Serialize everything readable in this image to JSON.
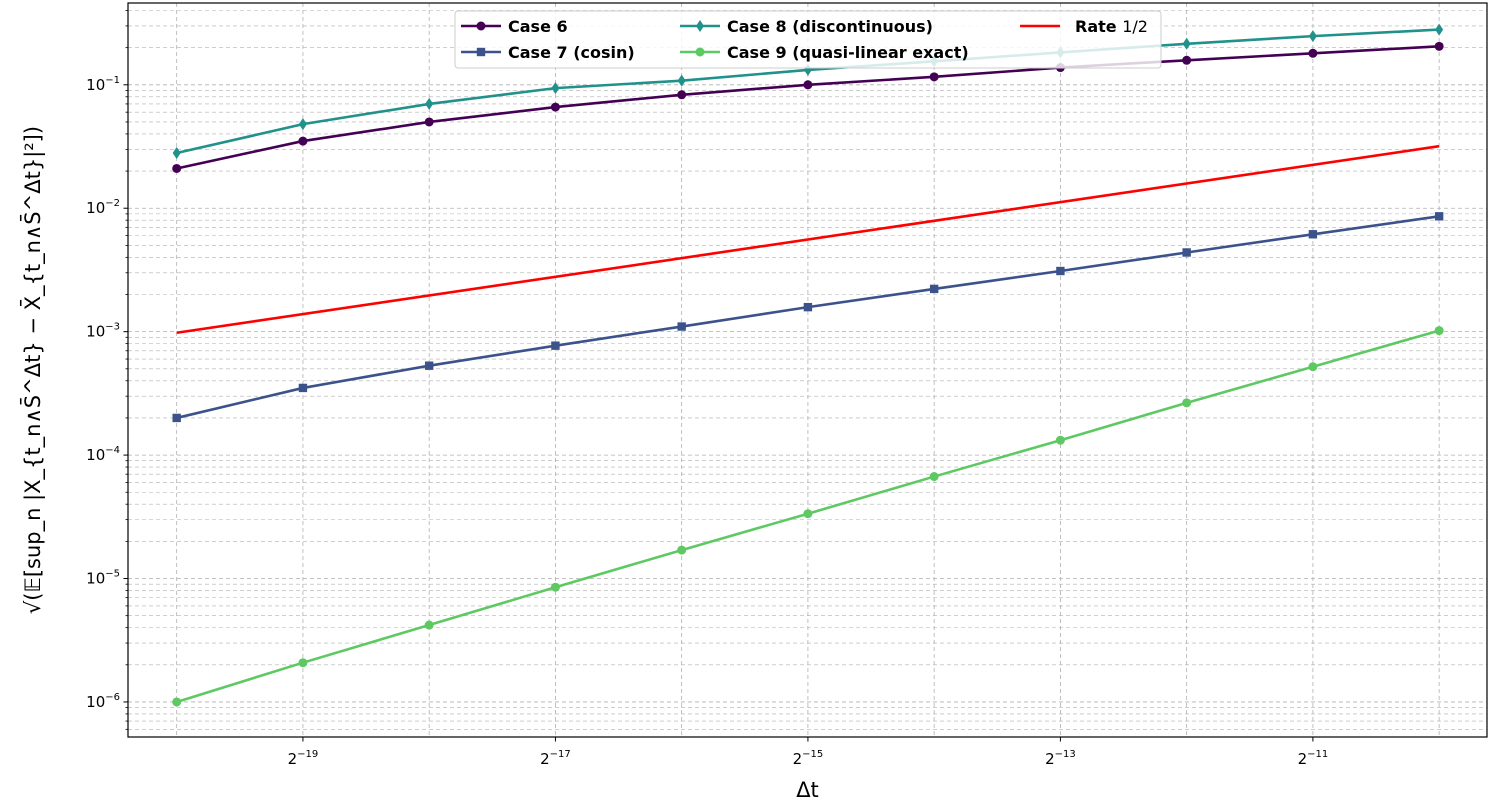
{
  "chart_data": {
    "type": "line",
    "x_scale": "log2",
    "y_scale": "log10",
    "x": [
      9.5367e-07,
      1.9073e-06,
      3.8147e-06,
      7.6294e-06,
      1.5259e-05,
      3.0518e-05,
      6.1035e-05,
      0.00012207,
      0.00024414,
      0.00048828,
      0.00097656
    ],
    "xlim": [
      7.3e-07,
      0.00127
    ],
    "ylim": [
      5.2e-07,
      0.46
    ],
    "x_ticks": [
      {
        "value": 1.9073e-06,
        "base": "2",
        "exp": "−19"
      },
      {
        "value": 7.6294e-06,
        "base": "2",
        "exp": "−17"
      },
      {
        "value": 3.0518e-05,
        "base": "2",
        "exp": "−15"
      },
      {
        "value": 0.00012207,
        "base": "2",
        "exp": "−13"
      },
      {
        "value": 0.00048828,
        "base": "2",
        "exp": "−11"
      }
    ],
    "y_ticks": [
      {
        "value": 1e-06,
        "base": "10",
        "exp": "−6"
      },
      {
        "value": 1e-05,
        "base": "10",
        "exp": "−5"
      },
      {
        "value": 0.0001,
        "base": "10",
        "exp": "−4"
      },
      {
        "value": 0.001,
        "base": "10",
        "exp": "−3"
      },
      {
        "value": 0.01,
        "base": "10",
        "exp": "−2"
      },
      {
        "value": 0.1,
        "base": "10",
        "exp": "−1"
      }
    ],
    "xlabel": "Δt",
    "ylabel": "√(𝔼[sup_n |X_{t_n∧S̄^Δt} − X̄_{t_n∧S̄^Δt}|²])",
    "grid": true,
    "grid_minor": true,
    "legend_position": "top-center",
    "series": [
      {
        "name": "Case 6",
        "color": "#440154",
        "marker": "circle",
        "values": [
          0.021,
          0.035,
          0.05,
          0.066,
          0.083,
          0.1,
          0.116,
          0.138,
          0.158,
          0.18,
          0.205
        ]
      },
      {
        "name": "Case 7 (cosin)",
        "color": "#3b528b",
        "marker": "square",
        "values": [
          0.0002,
          0.00035,
          0.00053,
          0.00077,
          0.0011,
          0.00158,
          0.00222,
          0.0031,
          0.00438,
          0.00615,
          0.0086
        ]
      },
      {
        "name": "Case 8 (discontinuous)",
        "color": "#21918c",
        "marker": "diamond",
        "values": [
          0.028,
          0.048,
          0.07,
          0.094,
          0.108,
          0.132,
          0.155,
          0.183,
          0.215,
          0.248,
          0.28
        ]
      },
      {
        "name": "Case 9 (quasi-linear exact)",
        "color": "#5ec962",
        "marker": "circle",
        "values": [
          1e-06,
          2.08e-06,
          4.2e-06,
          8.5e-06,
          1.7e-05,
          3.35e-05,
          6.7e-05,
          0.000132,
          0.000265,
          0.00052,
          0.00102
        ]
      },
      {
        "name": "Rate 1/2",
        "name_bold": "Rate",
        "name_normal": "1/2",
        "color": "#ff0000",
        "marker": "none",
        "x": [
          9.5367e-07,
          0.00097656
        ],
        "values": [
          0.00098,
          0.0318
        ]
      }
    ]
  }
}
